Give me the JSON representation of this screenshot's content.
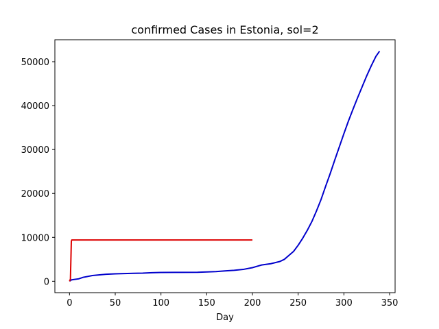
{
  "chart_data": {
    "type": "line",
    "title": "confirmed Cases in Estonia, sol=2",
    "xlabel": "Day",
    "ylabel": "",
    "xlim": [
      -16,
      356
    ],
    "ylim": [
      -2600,
      55000
    ],
    "x_ticks": [
      0,
      50,
      100,
      150,
      200,
      250,
      300,
      350
    ],
    "x_tick_labels": [
      "0",
      "50",
      "100",
      "150",
      "200",
      "250",
      "300",
      "350"
    ],
    "y_ticks": [
      0,
      10000,
      20000,
      30000,
      40000,
      50000
    ],
    "y_tick_labels": [
      "0",
      "10000",
      "20000",
      "30000",
      "40000",
      "50000"
    ],
    "grid": false,
    "legend": "none",
    "series": [
      {
        "color": "#0000cc",
        "x": [
          0,
          2,
          5,
          10,
          15,
          20,
          25,
          30,
          40,
          50,
          60,
          70,
          80,
          90,
          100,
          120,
          140,
          160,
          170,
          180,
          190,
          200,
          205,
          210,
          220,
          230,
          235,
          240,
          245,
          250,
          255,
          260,
          265,
          270,
          275,
          280,
          285,
          290,
          295,
          300,
          305,
          310,
          315,
          320,
          325,
          330,
          335,
          339
        ],
        "y": [
          0,
          300,
          400,
          550,
          900,
          1100,
          1300,
          1400,
          1600,
          1700,
          1750,
          1800,
          1850,
          1950,
          2000,
          2020,
          2050,
          2200,
          2350,
          2500,
          2700,
          3100,
          3400,
          3700,
          4000,
          4500,
          5000,
          5900,
          6800,
          8200,
          9800,
          11600,
          13600,
          16000,
          18600,
          21600,
          24500,
          27600,
          30600,
          33600,
          36500,
          39200,
          41800,
          44300,
          46800,
          49100,
          51200,
          52400
        ]
      },
      {
        "color": "#dd0000",
        "x": [
          0,
          1,
          2,
          2.5,
          50,
          100,
          150,
          200
        ],
        "y": [
          0,
          500,
          9100,
          9400,
          9400,
          9400,
          9400,
          9400
        ]
      }
    ]
  }
}
